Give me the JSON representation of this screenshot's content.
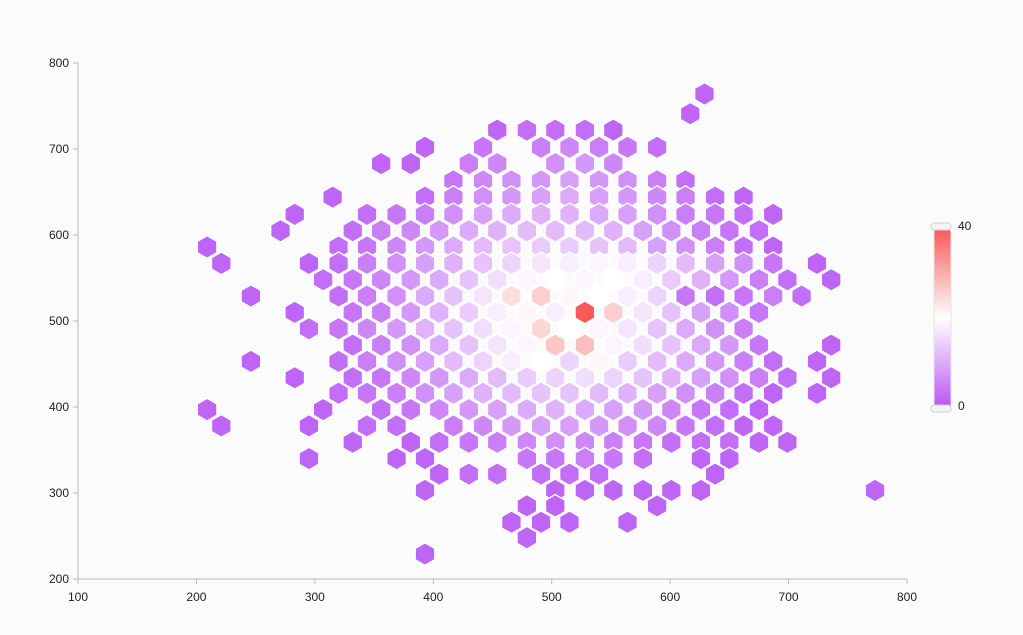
{
  "chart_data": {
    "type": "heatmap",
    "subtype": "hexbin",
    "title": "",
    "xlabel": "",
    "ylabel": "",
    "xlim": [
      100,
      800
    ],
    "ylim": [
      200,
      800
    ],
    "x_ticks": [
      "100",
      "200",
      "300",
      "400",
      "500",
      "600",
      "700",
      "800"
    ],
    "y_ticks": [
      "200",
      "300",
      "400",
      "500",
      "600",
      "700",
      "800"
    ],
    "grid": false,
    "legend": {
      "placement": "right",
      "type": "color-scale",
      "min_label": "0",
      "max_label": "40",
      "min": 0,
      "max": 40
    },
    "colors": {
      "low": "#b854f4",
      "mid": "#ffffff",
      "high": "#f85a5a",
      "hex_stroke": "#ffffff",
      "axis": "#bbbbbb"
    },
    "bin_spacing_x": 24.5,
    "bin_spacing_y": 20.0,
    "bins": [
      [
        629,
        764,
        2
      ],
      [
        617,
        741,
        2
      ],
      [
        454,
        722,
        2
      ],
      [
        479,
        722,
        3
      ],
      [
        503,
        722,
        3
      ],
      [
        528,
        722,
        3
      ],
      [
        552,
        722,
        2
      ],
      [
        393,
        702,
        2
      ],
      [
        442,
        702,
        4
      ],
      [
        491,
        702,
        5
      ],
      [
        515,
        702,
        6
      ],
      [
        540,
        702,
        5
      ],
      [
        564,
        702,
        4
      ],
      [
        589,
        702,
        3
      ],
      [
        356,
        683,
        2
      ],
      [
        381,
        683,
        2
      ],
      [
        430,
        683,
        5
      ],
      [
        454,
        683,
        6
      ],
      [
        503,
        683,
        7
      ],
      [
        528,
        683,
        8
      ],
      [
        552,
        683,
        6
      ],
      [
        417,
        663,
        4
      ],
      [
        442,
        663,
        6
      ],
      [
        466,
        663,
        7
      ],
      [
        491,
        663,
        8
      ],
      [
        515,
        663,
        9
      ],
      [
        540,
        663,
        8
      ],
      [
        564,
        663,
        7
      ],
      [
        589,
        663,
        5
      ],
      [
        613,
        663,
        3
      ],
      [
        315,
        644,
        2
      ],
      [
        393,
        644,
        3
      ],
      [
        417,
        644,
        5
      ],
      [
        442,
        644,
        7
      ],
      [
        466,
        644,
        8
      ],
      [
        491,
        644,
        9
      ],
      [
        515,
        644,
        10
      ],
      [
        540,
        644,
        9
      ],
      [
        564,
        644,
        8
      ],
      [
        589,
        644,
        6
      ],
      [
        613,
        644,
        5
      ],
      [
        638,
        644,
        3
      ],
      [
        662,
        644,
        2
      ],
      [
        283,
        624,
        2
      ],
      [
        344,
        624,
        3
      ],
      [
        369,
        624,
        4
      ],
      [
        393,
        624,
        5
      ],
      [
        417,
        624,
        7
      ],
      [
        442,
        624,
        9
      ],
      [
        466,
        624,
        10
      ],
      [
        491,
        624,
        11
      ],
      [
        515,
        624,
        11
      ],
      [
        540,
        624,
        10
      ],
      [
        564,
        624,
        9
      ],
      [
        589,
        624,
        7
      ],
      [
        613,
        624,
        5
      ],
      [
        638,
        624,
        4
      ],
      [
        662,
        624,
        3
      ],
      [
        687,
        624,
        2
      ],
      [
        271,
        605,
        2
      ],
      [
        332,
        605,
        3
      ],
      [
        356,
        605,
        5
      ],
      [
        381,
        605,
        6
      ],
      [
        405,
        605,
        8
      ],
      [
        430,
        605,
        10
      ],
      [
        454,
        605,
        11
      ],
      [
        479,
        605,
        12
      ],
      [
        503,
        605,
        12
      ],
      [
        528,
        605,
        12
      ],
      [
        552,
        605,
        11
      ],
      [
        577,
        605,
        9
      ],
      [
        601,
        605,
        7
      ],
      [
        626,
        605,
        5
      ],
      [
        650,
        605,
        4
      ],
      [
        675,
        605,
        3
      ],
      [
        209,
        586,
        2
      ],
      [
        320,
        586,
        3
      ],
      [
        344,
        586,
        4
      ],
      [
        369,
        586,
        6
      ],
      [
        393,
        586,
        8
      ],
      [
        417,
        586,
        10
      ],
      [
        442,
        586,
        12
      ],
      [
        466,
        586,
        13
      ],
      [
        491,
        586,
        14
      ],
      [
        515,
        586,
        14
      ],
      [
        540,
        586,
        13
      ],
      [
        564,
        586,
        12
      ],
      [
        589,
        586,
        9
      ],
      [
        613,
        586,
        7
      ],
      [
        638,
        586,
        5
      ],
      [
        662,
        586,
        3
      ],
      [
        687,
        586,
        2
      ],
      [
        221,
        567,
        2
      ],
      [
        295,
        567,
        2
      ],
      [
        320,
        567,
        3
      ],
      [
        344,
        567,
        5
      ],
      [
        369,
        567,
        7
      ],
      [
        393,
        567,
        9
      ],
      [
        417,
        567,
        11
      ],
      [
        442,
        567,
        13
      ],
      [
        466,
        567,
        15
      ],
      [
        491,
        567,
        17
      ],
      [
        515,
        567,
        18
      ],
      [
        540,
        567,
        19
      ],
      [
        564,
        567,
        18
      ],
      [
        589,
        567,
        15
      ],
      [
        613,
        567,
        12
      ],
      [
        638,
        567,
        9
      ],
      [
        662,
        567,
        7
      ],
      [
        687,
        567,
        4
      ],
      [
        724,
        567,
        2
      ],
      [
        307,
        548,
        3
      ],
      [
        332,
        548,
        4
      ],
      [
        356,
        548,
        6
      ],
      [
        381,
        548,
        8
      ],
      [
        405,
        548,
        10
      ],
      [
        430,
        548,
        13
      ],
      [
        454,
        548,
        16
      ],
      [
        479,
        548,
        19
      ],
      [
        503,
        548,
        20
      ],
      [
        528,
        548,
        19
      ],
      [
        552,
        548,
        20
      ],
      [
        577,
        548,
        18
      ],
      [
        601,
        548,
        14
      ],
      [
        626,
        548,
        11
      ],
      [
        650,
        548,
        8
      ],
      [
        675,
        548,
        5
      ],
      [
        699,
        548,
        3
      ],
      [
        736,
        548,
        2
      ],
      [
        246,
        529,
        2
      ],
      [
        320,
        529,
        3
      ],
      [
        344,
        529,
        5
      ],
      [
        369,
        529,
        7
      ],
      [
        393,
        529,
        10
      ],
      [
        417,
        529,
        13
      ],
      [
        442,
        529,
        17
      ],
      [
        466,
        529,
        24
      ],
      [
        491,
        529,
        26
      ],
      [
        515,
        529,
        21
      ],
      [
        540,
        529,
        20
      ],
      [
        564,
        529,
        18
      ],
      [
        589,
        529,
        15
      ],
      [
        613,
        529,
        4
      ],
      [
        638,
        529,
        3
      ],
      [
        662,
        529,
        4
      ],
      [
        687,
        529,
        5
      ],
      [
        711,
        529,
        3
      ],
      [
        283,
        510,
        2
      ],
      [
        332,
        510,
        4
      ],
      [
        356,
        510,
        5
      ],
      [
        381,
        510,
        8
      ],
      [
        405,
        510,
        11
      ],
      [
        430,
        510,
        14
      ],
      [
        454,
        510,
        18
      ],
      [
        479,
        510,
        21
      ],
      [
        503,
        510,
        18
      ],
      [
        528,
        510,
        40
      ],
      [
        552,
        510,
        26
      ],
      [
        577,
        510,
        17
      ],
      [
        601,
        510,
        13
      ],
      [
        626,
        510,
        9
      ],
      [
        650,
        510,
        7
      ],
      [
        675,
        510,
        4
      ],
      [
        295,
        491,
        3
      ],
      [
        320,
        491,
        4
      ],
      [
        344,
        491,
        6
      ],
      [
        369,
        491,
        8
      ],
      [
        393,
        491,
        11
      ],
      [
        417,
        491,
        13
      ],
      [
        442,
        491,
        16
      ],
      [
        466,
        491,
        19
      ],
      [
        491,
        491,
        25
      ],
      [
        515,
        491,
        20
      ],
      [
        540,
        491,
        19
      ],
      [
        564,
        491,
        17
      ],
      [
        589,
        491,
        13
      ],
      [
        613,
        491,
        10
      ],
      [
        638,
        491,
        7
      ],
      [
        662,
        491,
        5
      ],
      [
        332,
        472,
        3
      ],
      [
        356,
        472,
        5
      ],
      [
        381,
        472,
        7
      ],
      [
        405,
        472,
        10
      ],
      [
        430,
        472,
        13
      ],
      [
        454,
        472,
        17
      ],
      [
        479,
        472,
        19
      ],
      [
        503,
        472,
        27
      ],
      [
        528,
        472,
        28
      ],
      [
        552,
        472,
        19
      ],
      [
        577,
        472,
        16
      ],
      [
        601,
        472,
        13
      ],
      [
        626,
        472,
        10
      ],
      [
        650,
        472,
        8
      ],
      [
        675,
        472,
        4
      ],
      [
        736,
        472,
        2
      ],
      [
        246,
        453,
        2
      ],
      [
        320,
        453,
        3
      ],
      [
        344,
        453,
        5
      ],
      [
        369,
        453,
        7
      ],
      [
        393,
        453,
        9
      ],
      [
        417,
        453,
        12
      ],
      [
        442,
        453,
        15
      ],
      [
        466,
        453,
        18
      ],
      [
        491,
        453,
        20
      ],
      [
        515,
        453,
        15
      ],
      [
        540,
        453,
        21
      ],
      [
        564,
        453,
        14
      ],
      [
        589,
        453,
        12
      ],
      [
        613,
        453,
        10
      ],
      [
        638,
        453,
        8
      ],
      [
        662,
        453,
        5
      ],
      [
        687,
        453,
        3
      ],
      [
        724,
        453,
        2
      ],
      [
        283,
        434,
        2
      ],
      [
        332,
        434,
        3
      ],
      [
        356,
        434,
        4
      ],
      [
        381,
        434,
        6
      ],
      [
        405,
        434,
        8
      ],
      [
        430,
        434,
        10
      ],
      [
        454,
        434,
        12
      ],
      [
        479,
        434,
        14
      ],
      [
        503,
        434,
        15
      ],
      [
        528,
        434,
        16
      ],
      [
        552,
        434,
        15
      ],
      [
        577,
        434,
        13
      ],
      [
        601,
        434,
        11
      ],
      [
        626,
        434,
        9
      ],
      [
        650,
        434,
        7
      ],
      [
        675,
        434,
        5
      ],
      [
        699,
        434,
        3
      ],
      [
        736,
        434,
        2
      ],
      [
        320,
        416,
        3
      ],
      [
        344,
        416,
        4
      ],
      [
        369,
        416,
        5
      ],
      [
        393,
        416,
        7
      ],
      [
        417,
        416,
        9
      ],
      [
        442,
        416,
        11
      ],
      [
        466,
        416,
        12
      ],
      [
        491,
        416,
        13
      ],
      [
        515,
        416,
        13
      ],
      [
        540,
        416,
        12
      ],
      [
        564,
        416,
        11
      ],
      [
        589,
        416,
        9
      ],
      [
        613,
        416,
        7
      ],
      [
        638,
        416,
        5
      ],
      [
        662,
        416,
        3
      ],
      [
        687,
        416,
        2
      ],
      [
        724,
        416,
        2
      ],
      [
        209,
        397,
        2
      ],
      [
        307,
        397,
        2
      ],
      [
        356,
        397,
        3
      ],
      [
        381,
        397,
        4
      ],
      [
        405,
        397,
        6
      ],
      [
        430,
        397,
        8
      ],
      [
        454,
        397,
        9
      ],
      [
        479,
        397,
        10
      ],
      [
        503,
        397,
        11
      ],
      [
        528,
        397,
        10
      ],
      [
        552,
        397,
        9
      ],
      [
        577,
        397,
        8
      ],
      [
        601,
        397,
        6
      ],
      [
        626,
        397,
        4
      ],
      [
        650,
        397,
        3
      ],
      [
        675,
        397,
        2
      ],
      [
        221,
        378,
        2
      ],
      [
        295,
        378,
        2
      ],
      [
        344,
        378,
        3
      ],
      [
        369,
        378,
        3
      ],
      [
        417,
        378,
        5
      ],
      [
        442,
        378,
        6
      ],
      [
        466,
        378,
        8
      ],
      [
        491,
        378,
        9
      ],
      [
        515,
        378,
        9
      ],
      [
        540,
        378,
        8
      ],
      [
        564,
        378,
        7
      ],
      [
        589,
        378,
        6
      ],
      [
        613,
        378,
        4
      ],
      [
        638,
        378,
        3
      ],
      [
        662,
        378,
        2
      ],
      [
        687,
        378,
        2
      ],
      [
        332,
        359,
        2
      ],
      [
        381,
        359,
        2
      ],
      [
        405,
        359,
        3
      ],
      [
        430,
        359,
        4
      ],
      [
        454,
        359,
        5
      ],
      [
        479,
        359,
        6
      ],
      [
        503,
        359,
        7
      ],
      [
        528,
        359,
        6
      ],
      [
        552,
        359,
        5
      ],
      [
        577,
        359,
        4
      ],
      [
        601,
        359,
        3
      ],
      [
        626,
        359,
        3
      ],
      [
        650,
        359,
        3
      ],
      [
        675,
        359,
        2
      ],
      [
        699,
        359,
        2
      ],
      [
        295,
        340,
        2
      ],
      [
        369,
        340,
        2
      ],
      [
        393,
        340,
        2
      ],
      [
        479,
        340,
        4
      ],
      [
        503,
        340,
        4
      ],
      [
        528,
        340,
        5
      ],
      [
        552,
        340,
        4
      ],
      [
        577,
        340,
        3
      ],
      [
        626,
        340,
        2
      ],
      [
        650,
        340,
        2
      ],
      [
        405,
        322,
        2
      ],
      [
        430,
        322,
        3
      ],
      [
        454,
        322,
        3
      ],
      [
        491,
        322,
        3
      ],
      [
        515,
        322,
        3
      ],
      [
        540,
        322,
        3
      ],
      [
        638,
        322,
        2
      ],
      [
        393,
        303,
        2
      ],
      [
        503,
        303,
        2
      ],
      [
        528,
        303,
        2
      ],
      [
        552,
        303,
        2
      ],
      [
        577,
        303,
        2
      ],
      [
        601,
        303,
        2
      ],
      [
        626,
        303,
        2
      ],
      [
        773,
        303,
        2
      ],
      [
        479,
        285,
        2
      ],
      [
        503,
        285,
        2
      ],
      [
        589,
        285,
        2
      ],
      [
        466,
        266,
        2
      ],
      [
        491,
        266,
        2
      ],
      [
        515,
        266,
        2
      ],
      [
        564,
        266,
        2
      ],
      [
        479,
        248,
        2
      ],
      [
        393,
        229,
        2
      ]
    ]
  }
}
